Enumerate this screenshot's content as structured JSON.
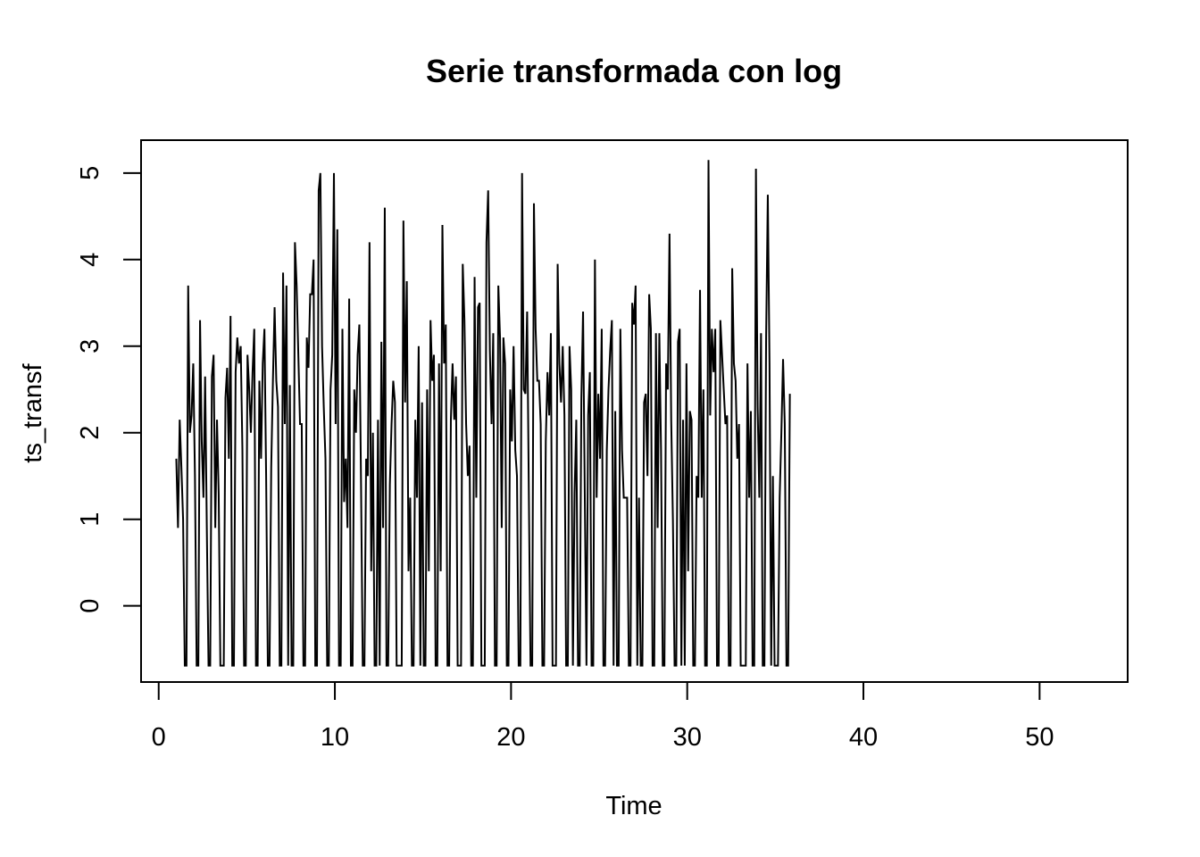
{
  "chart_data": {
    "type": "line",
    "title": "Serie transformada con log",
    "xlabel": "Time",
    "ylabel": "ts_transf",
    "xlim": [
      -1,
      55
    ],
    "ylim": [
      -0.88,
      5.38
    ],
    "x_ticks": [
      0,
      10,
      20,
      30,
      40,
      50
    ],
    "y_ticks": [
      0,
      1,
      2,
      3,
      4,
      5
    ],
    "grid": false,
    "legend": "none",
    "line_color": "#000000",
    "series": [
      {
        "x_start": 1,
        "x_step": 0.0962,
        "values": [
          1.7,
          0.9,
          2.15,
          1.6,
          1.0,
          -0.69,
          -0.69,
          3.7,
          2.0,
          2.2,
          2.8,
          1.5,
          -0.69,
          -0.69,
          3.3,
          1.9,
          1.25,
          2.65,
          0.9,
          -0.69,
          -0.69,
          2.65,
          2.9,
          0.9,
          2.15,
          1.3,
          -0.69,
          -0.69,
          -0.69,
          2.4,
          2.75,
          1.7,
          3.35,
          -0.69,
          -0.69,
          2.7,
          3.1,
          2.8,
          3.0,
          1.8,
          -0.69,
          -0.69,
          2.9,
          2.5,
          2.0,
          2.7,
          3.2,
          -0.69,
          -0.69,
          2.6,
          1.7,
          2.8,
          3.2,
          1.5,
          -0.69,
          -0.69,
          1.6,
          2.6,
          3.45,
          2.6,
          2.3,
          -0.69,
          -0.69,
          3.85,
          2.1,
          3.7,
          -0.69,
          2.55,
          -0.69,
          -0.69,
          4.2,
          3.7,
          2.9,
          2.1,
          2.1,
          -0.69,
          -0.69,
          3.1,
          2.75,
          3.6,
          3.6,
          4.0,
          -0.69,
          -0.69,
          4.8,
          5.0,
          3.0,
          2.3,
          1.7,
          -0.69,
          -0.69,
          2.5,
          2.9,
          5.0,
          2.1,
          4.35,
          -0.69,
          -0.69,
          3.2,
          1.2,
          1.7,
          0.9,
          3.55,
          -0.69,
          -0.69,
          2.5,
          2.0,
          2.9,
          3.25,
          1.4,
          -0.69,
          -0.69,
          1.7,
          1.5,
          4.2,
          0.4,
          2.0,
          -0.69,
          -0.69,
          2.15,
          -0.69,
          3.05,
          0.9,
          4.6,
          -0.69,
          -0.69,
          1.4,
          2.1,
          2.6,
          2.35,
          -0.69,
          -0.69,
          -0.69,
          -0.69,
          4.45,
          2.35,
          3.75,
          0.4,
          1.25,
          -0.69,
          -0.69,
          2.15,
          1.25,
          3.0,
          -0.69,
          2.35,
          -0.69,
          -0.69,
          2.5,
          0.4,
          3.3,
          2.6,
          2.9,
          -0.69,
          -0.69,
          2.8,
          0.4,
          4.4,
          2.8,
          3.25,
          -0.69,
          -0.69,
          2.15,
          2.8,
          2.15,
          2.65,
          -0.69,
          -0.69,
          -0.69,
          3.95,
          3.3,
          2.1,
          1.5,
          1.85,
          -0.69,
          -0.69,
          3.8,
          1.25,
          3.45,
          3.5,
          -0.69,
          -0.69,
          -0.69,
          4.2,
          4.8,
          2.95,
          2.1,
          3.15,
          -0.69,
          -0.69,
          3.7,
          3.1,
          0.9,
          3.1,
          2.8,
          -0.69,
          -0.69,
          2.5,
          1.9,
          3.0,
          1.8,
          1.5,
          -0.69,
          -0.69,
          5.0,
          2.5,
          2.45,
          3.4,
          1.3,
          -0.69,
          -0.69,
          4.65,
          3.2,
          2.6,
          2.6,
          2.1,
          -0.69,
          -0.69,
          1.9,
          2.7,
          2.2,
          3.15,
          -0.69,
          -0.69,
          -0.69,
          3.95,
          2.8,
          2.35,
          3.0,
          2.2,
          -0.69,
          -0.69,
          3.0,
          2.5,
          -0.69,
          1.3,
          2.15,
          -0.69,
          -0.69,
          2.4,
          3.4,
          1.3,
          -0.69,
          2.2,
          2.7,
          -0.69,
          -0.69,
          4.0,
          1.25,
          2.45,
          1.7,
          3.2,
          -0.69,
          -0.69,
          1.8,
          2.5,
          2.95,
          3.3,
          -0.69,
          2.25,
          -0.69,
          -0.69,
          3.2,
          1.8,
          1.25,
          1.25,
          1.25,
          -0.69,
          -0.69,
          3.5,
          3.25,
          3.7,
          -0.69,
          1.25,
          -0.69,
          -0.69,
          2.35,
          2.45,
          1.5,
          3.6,
          3.2,
          -0.69,
          -0.69,
          3.15,
          0.9,
          3.15,
          1.8,
          -0.69,
          -0.69,
          2.8,
          2.5,
          4.3,
          2.15,
          1.0,
          -0.69,
          -0.69,
          3.05,
          3.2,
          -0.69,
          2.15,
          -0.69,
          2.8,
          0.4,
          2.25,
          2.15,
          -0.69,
          -0.69,
          1.5,
          1.25,
          3.65,
          1.25,
          2.5,
          -0.69,
          -0.69,
          5.15,
          2.2,
          3.2,
          2.7,
          3.2,
          -0.69,
          -0.69,
          3.3,
          2.9,
          2.5,
          2.1,
          2.2,
          -0.69,
          -0.69,
          3.9,
          2.8,
          2.6,
          1.7,
          2.1,
          -0.69,
          -0.69,
          -0.69,
          -0.69,
          2.8,
          1.25,
          2.25,
          -0.69,
          -0.69,
          5.05,
          2.3,
          1.25,
          3.15,
          -0.69,
          -0.69,
          3.1,
          4.75,
          2.8,
          -0.69,
          1.5,
          -0.69,
          -0.69,
          -0.69,
          1.25,
          2.0,
          2.85,
          2.1,
          -0.69,
          -0.69,
          2.45
        ]
      }
    ]
  }
}
